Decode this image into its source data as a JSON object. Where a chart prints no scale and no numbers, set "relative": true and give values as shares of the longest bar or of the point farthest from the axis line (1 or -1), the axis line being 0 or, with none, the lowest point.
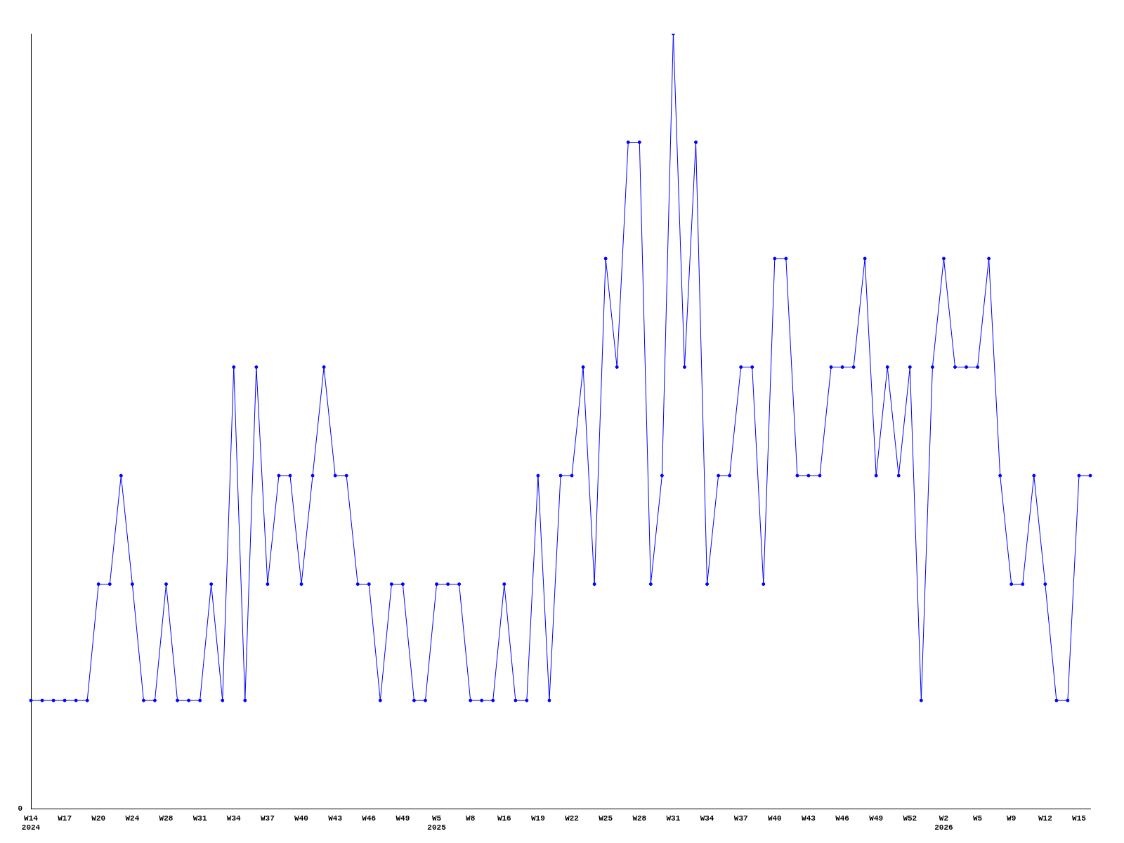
{
  "chart_data": {
    "type": "line",
    "relative": true,
    "color": "#0000ff",
    "marker": "circle",
    "line_style": "solid",
    "grid": false,
    "legend": false,
    "categories": [
      "W14\n2024",
      null,
      null,
      "W17",
      null,
      null,
      "W20",
      null,
      null,
      "W24",
      null,
      null,
      "W28",
      null,
      null,
      "W31",
      null,
      null,
      "W34",
      null,
      null,
      "W37",
      null,
      null,
      "W40",
      null,
      null,
      "W43",
      null,
      null,
      "W46",
      null,
      null,
      "W49",
      null,
      null,
      "W5\n2025",
      null,
      null,
      "W8",
      null,
      null,
      "W16",
      null,
      null,
      "W19",
      null,
      null,
      "W22",
      null,
      null,
      "W25",
      null,
      null,
      "W28",
      null,
      null,
      "W31",
      null,
      null,
      "W34",
      null,
      null,
      "W37",
      null,
      null,
      "W40",
      null,
      null,
      "W43",
      null,
      null,
      "W46",
      null,
      null,
      "W49",
      null,
      null,
      "W52",
      null,
      null,
      "W2\n2026",
      null,
      null,
      "W5",
      null,
      null,
      "W9",
      null,
      null,
      "W12",
      null,
      null,
      "W15",
      null
    ],
    "values": [
      0.14,
      0.14,
      0.14,
      0.14,
      0.14,
      0.14,
      0.29,
      0.29,
      0.43,
      0.29,
      0.14,
      0.14,
      0.29,
      0.14,
      0.14,
      0.14,
      0.29,
      0.14,
      0.57,
      0.14,
      0.57,
      0.29,
      0.43,
      0.43,
      0.29,
      0.43,
      0.57,
      0.43,
      0.43,
      0.29,
      0.29,
      0.14,
      0.29,
      0.29,
      0.14,
      0.14,
      0.29,
      0.29,
      0.29,
      0.14,
      0.14,
      0.14,
      0.29,
      0.14,
      0.14,
      0.43,
      0.14,
      0.43,
      0.43,
      0.57,
      0.29,
      0.71,
      0.57,
      0.86,
      0.86,
      0.29,
      0.43,
      1,
      0.57,
      0.86,
      0.29,
      0.43,
      0.43,
      0.57,
      0.57,
      0.29,
      0.71,
      0.71,
      0.43,
      0.43,
      0.43,
      0.57,
      0.57,
      0.57,
      0.71,
      0.43,
      0.57,
      0.43,
      0.57,
      0.14,
      0.57,
      0.71,
      0.57,
      0.57,
      0.57,
      0.71,
      0.43,
      0.29,
      0.29,
      0.43,
      0.29,
      0.14,
      0.14,
      0.43,
      0.43
    ],
    "annotations": [
      "0"
    ]
  }
}
